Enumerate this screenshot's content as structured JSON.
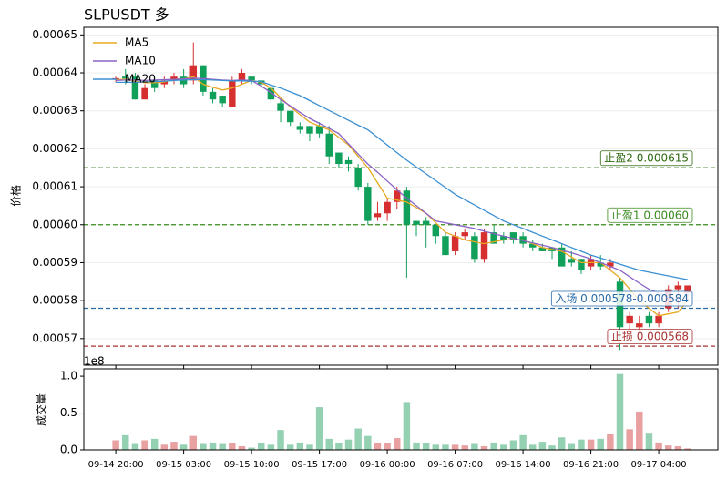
{
  "chart_data": [
    {
      "type": "candlestick",
      "title": "SLPUSDT  多",
      "ylabel": "价格",
      "categories": [
        "09-14 20:00",
        null,
        null,
        null,
        null,
        null,
        null,
        "09-15 03:00",
        null,
        null,
        null,
        null,
        null,
        null,
        "09-15 10:00",
        null,
        null,
        null,
        null,
        null,
        null,
        "09-15 17:00",
        null,
        null,
        null,
        null,
        null,
        null,
        "09-16 00:00",
        null,
        null,
        null,
        null,
        null,
        null,
        "09-16 07:00",
        null,
        null,
        null,
        null,
        null,
        null,
        "09-16 14:00",
        null,
        null,
        null,
        null,
        null,
        null,
        "09-16 21:00",
        null,
        null,
        null,
        null,
        null,
        null,
        "09-17 04:00",
        null,
        null,
        null
      ],
      "open": [
        0.0006382,
        0.000639,
        0.000639,
        0.000633,
        0.000638,
        0.000637,
        0.000638,
        0.000639,
        0.000638,
        0.000642,
        0.000635,
        0.000634,
        0.000631,
        0.000638,
        0.000639,
        0.000638,
        0.000636,
        0.000632,
        0.00063,
        0.000626,
        0.000626,
        0.000626,
        0.000624,
        0.000619,
        0.000617,
        0.000615,
        0.00061,
        0.000602,
        0.000603,
        0.000606,
        0.000609,
        0.000601,
        0.000601,
        0.0006,
        0.000597,
        0.000593,
        0.000597,
        0.000597,
        0.000591,
        0.000598,
        0.000597,
        0.000598,
        0.000597,
        0.000595,
        0.000594,
        0.000594,
        0.000594,
        0.000591,
        0.000591,
        0.000589,
        0.00059,
        0.000589,
        0.000585,
        0.000574,
        0.000573,
        0.000576,
        0.000574,
        0.000578,
        0.000583,
        0.000582
      ],
      "high": [
        0.000639,
        0.000641,
        0.00064,
        0.000637,
        0.000639,
        0.000639,
        0.00064,
        0.000641,
        0.000648,
        0.000642,
        0.000636,
        0.000634,
        0.000639,
        0.000641,
        0.000639,
        0.000638,
        0.000637,
        0.000633,
        0.00063,
        0.000627,
        0.000626,
        0.000627,
        0.000626,
        0.000619,
        0.000618,
        0.000616,
        0.000611,
        0.000606,
        0.000607,
        0.00061,
        0.00061,
        0.000601,
        0.000602,
        0.0006,
        0.000598,
        0.000598,
        0.000599,
        0.000598,
        0.000599,
        0.0006,
        0.000598,
        0.000598,
        0.000598,
        0.000596,
        0.000595,
        0.000594,
        0.000595,
        0.000593,
        0.000591,
        0.000592,
        0.000592,
        0.000591,
        0.000586,
        0.000577,
        0.000576,
        0.000577,
        0.000577,
        0.000584,
        0.000585,
        0.000584
      ],
      "low": [
        0.0006375,
        0.000637,
        0.000633,
        0.000633,
        0.000635,
        0.000636,
        0.000637,
        0.000636,
        0.000637,
        0.000634,
        0.000632,
        0.000631,
        0.000631,
        0.000637,
        0.000637,
        0.000636,
        0.000632,
        0.000627,
        0.000626,
        0.000624,
        0.000622,
        0.000623,
        0.000616,
        0.000615,
        0.000614,
        0.000609,
        0.0006,
        0.000601,
        0.000601,
        0.000604,
        0.000586,
        0.000597,
        0.000594,
        0.000595,
        0.000592,
        0.000592,
        0.000596,
        0.00059,
        0.00059,
        0.000595,
        0.000595,
        0.000595,
        0.000594,
        0.000593,
        0.000593,
        0.000591,
        0.000589,
        0.000589,
        0.000587,
        0.000588,
        0.000588,
        0.000588,
        0.000567,
        0.000571,
        0.000572,
        0.000573,
        0.000573,
        0.000577,
        0.000578,
        0.00058
      ],
      "close": [
        0.0006386,
        0.0006385,
        0.000633,
        0.000636,
        0.000636,
        0.000638,
        0.000639,
        0.000637,
        0.000642,
        0.000635,
        0.000633,
        0.000632,
        0.000638,
        0.00064,
        0.000638,
        0.000637,
        0.000633,
        0.00063,
        0.000627,
        0.000625,
        0.000624,
        0.000624,
        0.000618,
        0.000616,
        0.000616,
        0.00061,
        0.000601,
        0.000603,
        0.000606,
        0.000609,
        0.0006,
        0.0006,
        0.0006,
        0.000597,
        0.000592,
        0.000597,
        0.000598,
        0.000591,
        0.000598,
        0.000595,
        0.000596,
        0.000596,
        0.000595,
        0.000594,
        0.000593,
        0.000593,
        0.000589,
        0.00059,
        0.000588,
        0.000591,
        0.000589,
        0.00059,
        0.000573,
        0.000576,
        0.000574,
        0.000574,
        0.000576,
        0.000583,
        0.000584,
        0.000584
      ],
      "up_color": "#d62f2f",
      "down_color": "#11a05a",
      "series": [
        {
          "name": "MA5",
          "color": "#e8a820",
          "values": [
            0.0006382,
            0.0006383,
            0.0006378,
            0.0006374,
            0.0006374,
            0.0006376,
            0.0006383,
            0.0006384,
            0.000639,
            0.000637,
            0.0006362,
            0.0006355,
            0.000636,
            0.000637,
            0.000638,
            0.0006375,
            0.000636,
            0.0006335,
            0.000631,
            0.000629,
            0.000627,
            0.000626,
            0.000625,
            0.000623,
            0.000621,
            0.000618,
            0.000615,
            0.000611,
            0.000607,
            0.0006065,
            0.000606,
            0.0006045,
            0.000603,
            0.0006005,
            0.000598,
            0.000597,
            0.000596,
            0.0005955,
            0.000595,
            0.0005955,
            0.000596,
            0.000596,
            0.000596,
            0.000595,
            0.000594,
            0.0005935,
            0.000593,
            0.0005915,
            0.00059,
            0.00059,
            0.00059,
            0.000588,
            0.000586,
            0.000583,
            0.00058,
            0.000578,
            0.000576,
            0.0005765,
            0.000577,
            0.00058
          ]
        },
        {
          "name": "MA10",
          "color": "#8a62c6",
          "values": [
            0.000638,
            0.0006381,
            0.0006381,
            0.000638,
            0.0006381,
            0.0006382,
            0.0006383,
            0.0006384,
            0.0006386,
            0.0006385,
            0.0006383,
            0.0006381,
            0.000638,
            0.0006381,
            0.000638,
            0.0006365,
            0.0006348,
            0.000633,
            0.0006313,
            0.0006296,
            0.000628,
            0.0006267,
            0.0006254,
            0.000624,
            0.0006213,
            0.0006186,
            0.000616,
            0.0006138,
            0.0006115,
            0.0006092,
            0.000607,
            0.000605,
            0.000603,
            0.000601,
            0.0006005,
            0.0006,
            0.0005995,
            0.000599,
            0.0005983,
            0.0005976,
            0.000597,
            0.0005964,
            0.0005958,
            0.0005952,
            0.0005946,
            0.000594,
            0.0005933,
            0.0005926,
            0.0005918,
            0.000591,
            0.00059,
            0.000589,
            0.000588,
            0.0005863,
            0.0005846,
            0.000583,
            0.000582,
            0.000581,
            0.00058,
            0.00058
          ]
        },
        {
          "name": "MA20",
          "color": "#3b8fd2",
          "values": [
            0.0006375,
            0.0006375,
            0.0006375,
            0.0006376,
            0.0006377,
            0.0006378,
            0.000638,
            0.0006381,
            0.0006382,
            0.0006382,
            0.0006381,
            0.000638,
            0.0006379,
            0.0006379,
            0.0006378,
            0.0006377,
            0.0006368,
            0.000636,
            0.000635,
            0.000634,
            0.0006327,
            0.0006314,
            0.0006301,
            0.0006288,
            0.0006275,
            0.0006262,
            0.000625,
            0.000623,
            0.000621,
            0.000619,
            0.000617,
            0.0006152,
            0.0006134,
            0.0006116,
            0.0006098,
            0.000608,
            0.0006066,
            0.0006052,
            0.0006038,
            0.0006024,
            0.000601,
            0.0006,
            0.000599,
            0.000598,
            0.000597,
            0.000596,
            0.000595,
            0.000594,
            0.000593,
            0.000592,
            0.0005912,
            0.0005904,
            0.0005896,
            0.0005888,
            0.000588,
            0.0005875,
            0.000587,
            0.0005865,
            0.000586,
            0.0005855
          ]
        }
      ],
      "legend": "upper left",
      "annotations": [
        {
          "label": "止盈2 0.000615",
          "value": 0.000615,
          "color": "#2f6b12"
        },
        {
          "label": "止盈1 0.00060",
          "value": 0.0006,
          "color": "#3a8a1e"
        },
        {
          "label": "入场 0.000578-0.000584",
          "value": 0.000578,
          "color": "#2a6aa8"
        },
        {
          "label": "止损 0.000568",
          "value": 0.000568,
          "color": "#a83232"
        }
      ],
      "ylim": [
        0.000563,
        0.000652
      ],
      "yticks": [
        0.00057,
        0.00058,
        0.00059,
        {
          "value": 0.0006,
          "label": "0.00060"
        },
        0.00061,
        0.00062,
        0.00063,
        0.00064,
        0.00065
      ],
      "grid": true
    },
    {
      "type": "volume",
      "ylabel": "成交量",
      "offset_label": "1e8",
      "values": [
        0.13,
        0.2,
        0.08,
        0.13,
        0.15,
        0.07,
        0.11,
        0.07,
        0.19,
        0.08,
        0.1,
        0.08,
        0.09,
        0.05,
        0.03,
        0.1,
        0.07,
        0.27,
        0.07,
        0.1,
        0.07,
        0.58,
        0.15,
        0.09,
        0.14,
        0.29,
        0.19,
        0.09,
        0.09,
        0.16,
        0.65,
        0.1,
        0.09,
        0.07,
        0.07,
        0.07,
        0.06,
        0.08,
        0.05,
        0.1,
        0.07,
        0.13,
        0.2,
        0.07,
        0.11,
        0.06,
        0.17,
        0.08,
        0.14,
        0.14,
        0.15,
        0.21,
        1.03,
        0.28,
        0.52,
        0.22,
        0.1,
        0.06,
        0.05,
        0.02
      ],
      "up_color": "#e8a0a0",
      "down_color": "#94d0b2",
      "ylim": [
        0,
        1.1
      ],
      "yticks": [
        {
          "value": 0,
          "label": "0.0"
        },
        0.5,
        {
          "value": 1,
          "label": "1.0"
        }
      ]
    }
  ]
}
